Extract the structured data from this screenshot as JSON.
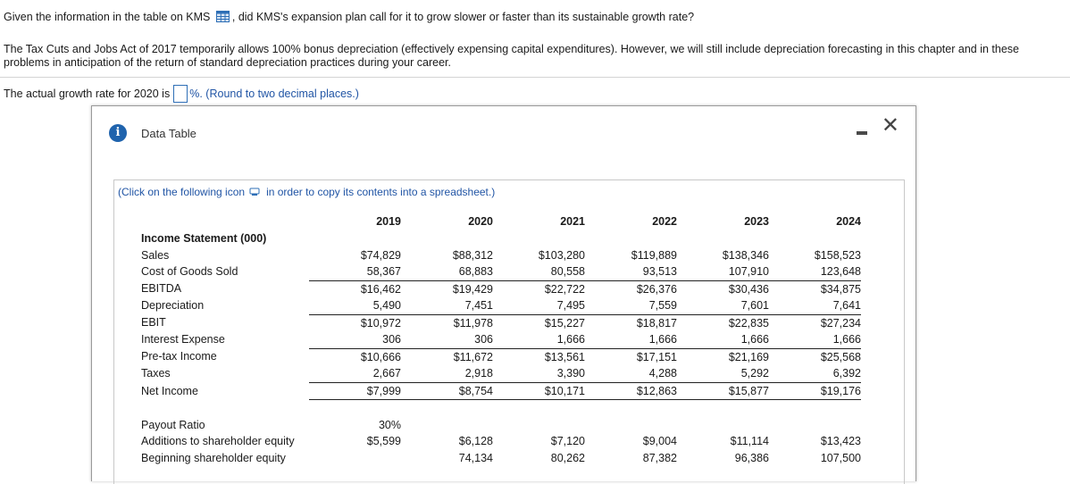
{
  "question": {
    "part1": "Given the information in the table on KMS",
    "part2": ", did KMS's expansion plan call for it to grow slower or faster than its sustainable growth rate?",
    "note": "The Tax Cuts and Jobs Act of 2017 temporarily allows 100% bonus depreciation (effectively expensing capital expenditures). However, we will still include depreciation forecasting in this chapter and in these problems in anticipation of the return of standard depreciation practices during your career.",
    "answer_prefix": "The actual growth rate for 2020 is",
    "answer_value": "",
    "answer_suffix": "%.",
    "answer_hint": "(Round to two decimal places.)"
  },
  "dialog": {
    "title": "Data Table",
    "copy_note_prefix": "(Click on the following icon",
    "copy_note_suffix": "in order to copy its contents into a spreadsheet.)"
  },
  "table": {
    "years": [
      "2019",
      "2020",
      "2021",
      "2022",
      "2023",
      "2024"
    ],
    "section_title": "Income Statement (000)",
    "rows": [
      {
        "label": "Sales",
        "values": [
          "$74,829",
          "$88,312",
          "$103,280",
          "$119,889",
          "$138,346",
          "$158,523"
        ]
      },
      {
        "label": "Cost of Goods Sold",
        "values": [
          "58,367",
          "68,883",
          "80,558",
          "93,513",
          "107,910",
          "123,648"
        ]
      },
      {
        "label": "EBITDA",
        "values": [
          "$16,462",
          "$19,429",
          "$22,722",
          "$26,376",
          "$30,436",
          "$34,875"
        ]
      },
      {
        "label": "Depreciation",
        "values": [
          "5,490",
          "7,451",
          "7,495",
          "7,559",
          "7,601",
          "7,641"
        ]
      },
      {
        "label": "EBIT",
        "values": [
          "$10,972",
          "$11,978",
          "$15,227",
          "$18,817",
          "$22,835",
          "$27,234"
        ]
      },
      {
        "label": "Interest Expense",
        "values": [
          "306",
          "306",
          "1,666",
          "1,666",
          "1,666",
          "1,666"
        ]
      },
      {
        "label": "Pre-tax Income",
        "values": [
          "$10,666",
          "$11,672",
          "$13,561",
          "$17,151",
          "$21,169",
          "$25,568"
        ]
      },
      {
        "label": "Taxes",
        "values": [
          "2,667",
          "2,918",
          "3,390",
          "4,288",
          "5,292",
          "6,392"
        ]
      },
      {
        "label": "Net Income",
        "values": [
          "$7,999",
          "$8,754",
          "$10,171",
          "$12,863",
          "$15,877",
          "$19,176"
        ]
      }
    ],
    "extra_rows": [
      {
        "label": "Payout Ratio",
        "values": [
          "30%",
          "",
          "",
          "",
          "",
          ""
        ]
      },
      {
        "label": "Additions to shareholder equity",
        "values": [
          "$5,599",
          "$6,128",
          "$7,120",
          "$9,004",
          "$11,114",
          "$13,423"
        ]
      },
      {
        "label": "Beginning shareholder equity",
        "values": [
          "",
          "74,134",
          "80,262",
          "87,382",
          "96,386",
          "107,500"
        ]
      }
    ]
  }
}
